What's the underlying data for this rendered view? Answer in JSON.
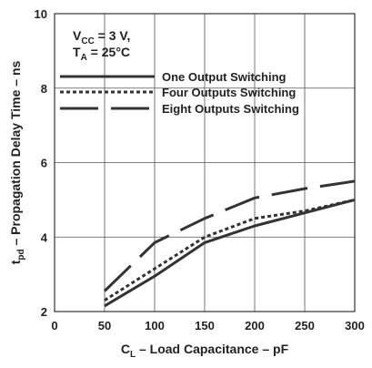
{
  "chart_data": {
    "type": "line",
    "xlabel": {
      "main": "C",
      "sub": "L",
      "rest": " – Load Capacitance – pF"
    },
    "ylabel": {
      "main": "t",
      "sub": "pd",
      "rest": " – Propagation Delay Time – ns"
    },
    "xlim": [
      0,
      300
    ],
    "ylim": [
      2,
      10
    ],
    "x_ticks": [
      0,
      50,
      100,
      150,
      200,
      250,
      300
    ],
    "y_ticks": [
      2,
      4,
      6,
      8,
      10
    ],
    "grid": true,
    "conditions": [
      {
        "main": "V",
        "sub": "CC",
        "rest": " = 3 V,"
      },
      {
        "main": "T",
        "sub": "A",
        "rest": " = 25°C"
      }
    ],
    "legend_position": "top",
    "series": [
      {
        "name": "One Output Switching",
        "style": "solid",
        "x": [
          50,
          100,
          150,
          200,
          250,
          300
        ],
        "values": [
          2.15,
          2.95,
          3.85,
          4.3,
          4.65,
          5.0
        ]
      },
      {
        "name": "Four Outputs Switching",
        "style": "dotted",
        "x": [
          50,
          100,
          150,
          200,
          250,
          300
        ],
        "values": [
          2.3,
          3.15,
          4.0,
          4.5,
          4.7,
          5.0
        ]
      },
      {
        "name": "Eight Outputs Switching",
        "style": "long-dash",
        "x": [
          50,
          100,
          150,
          200,
          250,
          300
        ],
        "values": [
          2.55,
          3.85,
          4.5,
          5.05,
          5.3,
          5.5
        ]
      }
    ]
  }
}
